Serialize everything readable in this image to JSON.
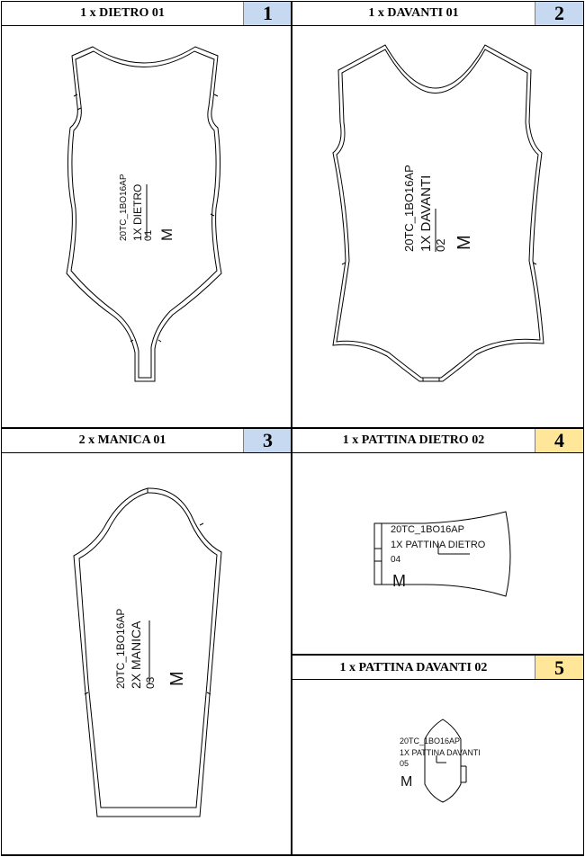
{
  "colors": {
    "blue_badge": "#c6d9f1",
    "yellow_badge": "#ffe699",
    "outline": "#000000"
  },
  "pieces": [
    {
      "title": "1 x DIETRO 01",
      "number": "1",
      "badge": "blue",
      "labels": [
        "20TC_1BO16AP",
        "1X DIETRO",
        "01",
        "M"
      ]
    },
    {
      "title": "1 x DAVANTI 01",
      "number": "2",
      "badge": "blue",
      "labels": [
        "20TC_1BO16AP",
        "1X DAVANTI",
        "02",
        "M"
      ]
    },
    {
      "title": "2 x MANICA 01",
      "number": "3",
      "badge": "blue",
      "labels": [
        "20TC_1BO16AP",
        "2X MANICA",
        "03",
        "M"
      ]
    },
    {
      "title": "1 x PATTINA DIETRO 02",
      "number": "4",
      "badge": "yellow",
      "labels": [
        "20TC_1BO16AP",
        "1X PATTINA DIETRO",
        "04",
        "M"
      ]
    },
    {
      "title": "1 x PATTINA DAVANTI 02",
      "number": "5",
      "badge": "yellow",
      "labels": [
        "20TC_1BO16AP",
        "1X PATTINA DAVANTI",
        "05",
        "M"
      ]
    }
  ]
}
